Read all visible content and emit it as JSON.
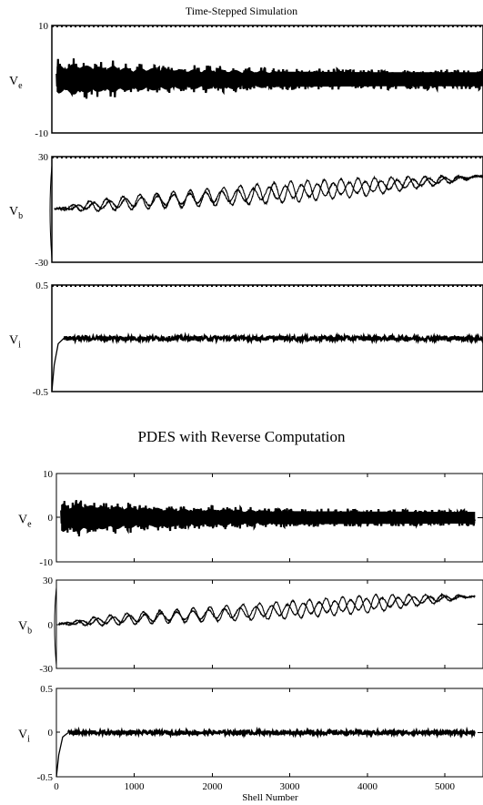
{
  "figure": {
    "top_title": "Time-Stepped Simulation",
    "bottom_title": "PDES with Reverse Computation"
  },
  "chart_data": [
    {
      "type": "line",
      "group": "Time-Stepped Simulation",
      "panel": "Ve",
      "label_main": "V",
      "label_sub": "e",
      "ylim": [
        -10,
        10
      ],
      "yticks": [
        "10",
        "-10"
      ],
      "xlim": [
        0,
        5400
      ],
      "envelope": {
        "x": [
          0,
          80,
          200,
          300,
          400,
          500,
          600,
          800,
          1000,
          1200,
          1600,
          2000,
          2400,
          3000,
          4000,
          5000,
          5400
        ],
        "amplitude": [
          2,
          3.5,
          3.2,
          4,
          3.2,
          3.6,
          3,
          3.2,
          2.6,
          2.8,
          2.4,
          2.4,
          2.2,
          2.0,
          1.9,
          1.9,
          1.9
        ]
      }
    },
    {
      "type": "line",
      "group": "Time-Stepped Simulation",
      "panel": "Vb",
      "label_main": "V",
      "label_sub": "b",
      "ylim": [
        -30,
        30
      ],
      "yticks": [
        "30",
        "-30"
      ],
      "xlim": [
        0,
        5400
      ],
      "trend": {
        "x": [
          0,
          500,
          1000,
          2000,
          3000,
          4000,
          5000,
          5400
        ],
        "y": [
          0,
          2,
          4,
          7,
          10,
          13,
          17,
          19
        ],
        "oscillation_amplitude": [
          0,
          3,
          4,
          5,
          6,
          5,
          2,
          0
        ]
      }
    },
    {
      "type": "line",
      "group": "Time-Stepped Simulation",
      "panel": "Vi",
      "label_main": "V",
      "label_sub": "i",
      "ylim": [
        -0.5,
        0.5
      ],
      "yticks": [
        "0.5",
        "-0.5"
      ],
      "xlim": [
        0,
        5400
      ],
      "initial_transient": {
        "x": [
          0,
          30,
          80,
          150
        ],
        "y": [
          -0.5,
          -0.25,
          -0.05,
          0
        ]
      },
      "noise_amplitude": 0.02
    },
    {
      "type": "line",
      "group": "PDES with Reverse Computation",
      "panel": "Ve",
      "label_main": "V",
      "label_sub": "e",
      "ylim": [
        -10,
        10
      ],
      "yticks": [
        "10",
        "0",
        "-10"
      ],
      "xlim": [
        0,
        5400
      ],
      "xmax_data": 5300,
      "envelope": {
        "x": [
          0,
          80,
          200,
          300,
          400,
          500,
          600,
          800,
          1000,
          1200,
          1600,
          2000,
          2400,
          3000,
          4000,
          5000,
          5300
        ],
        "amplitude": [
          3,
          4.2,
          3.6,
          4.5,
          3.5,
          4,
          3.3,
          3.4,
          3,
          3,
          2.6,
          2.6,
          2.3,
          2.1,
          2.0,
          1.9,
          1.9
        ]
      }
    },
    {
      "type": "line",
      "group": "PDES with Reverse Computation",
      "panel": "Vb",
      "label_main": "V",
      "label_sub": "b",
      "ylim": [
        -30,
        30
      ],
      "yticks": [
        "30",
        "0",
        "-30"
      ],
      "xlim": [
        0,
        5400
      ],
      "xmax_data": 5300,
      "trend": {
        "x": [
          0,
          500,
          1000,
          2000,
          3000,
          4000,
          5000,
          5300
        ],
        "y": [
          0,
          2,
          4,
          7,
          10,
          14,
          18,
          19
        ],
        "oscillation_amplitude": [
          0,
          3,
          4,
          5,
          6,
          6,
          2,
          0
        ]
      }
    },
    {
      "type": "line",
      "group": "PDES with Reverse Computation",
      "panel": "Vi",
      "label_main": "V",
      "label_sub": "i",
      "ylim": [
        -0.5,
        0.5
      ],
      "yticks": [
        "0.5",
        "0",
        "-0.5"
      ],
      "xlim": [
        0,
        5400
      ],
      "xmax_data": 5300,
      "xticks": [
        "0",
        "1000",
        "2000",
        "3000",
        "4000",
        "5000"
      ],
      "xlabel": "Shell Number",
      "initial_transient": {
        "x": [
          0,
          30,
          80,
          150
        ],
        "y": [
          -0.5,
          -0.25,
          -0.05,
          0
        ]
      },
      "noise_amplitude": 0.02
    }
  ]
}
